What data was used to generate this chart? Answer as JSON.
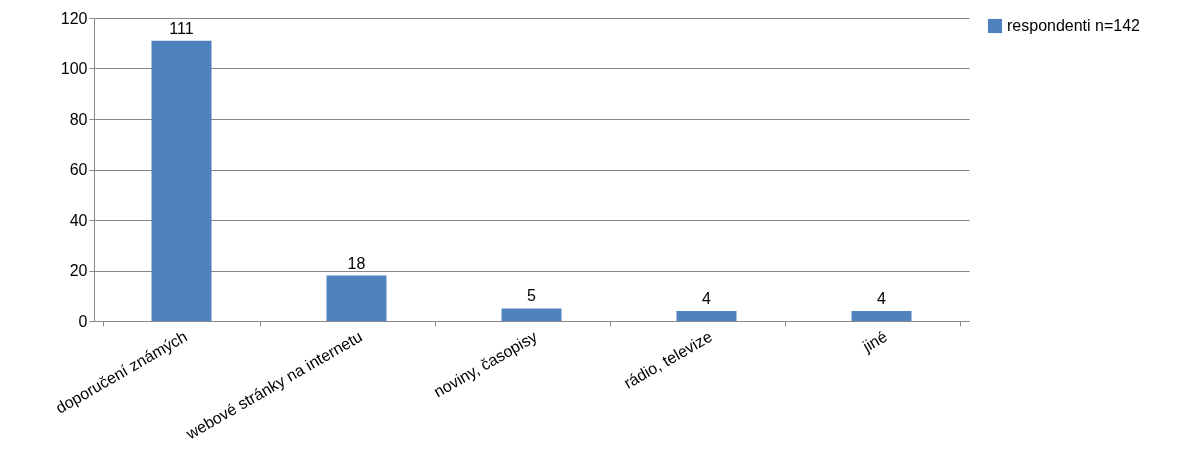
{
  "chart_data": {
    "type": "bar",
    "categories": [
      "doporučení známých",
      "webové stránky  na internetu",
      "noviny, časopisy",
      "rádio, televize",
      "jiné"
    ],
    "series": [
      {
        "name": "respondenti n=142",
        "color": "#4f81bd",
        "values": [
          111,
          18,
          5,
          4,
          4
        ]
      }
    ],
    "ylim": [
      0,
      120
    ],
    "yticks": [
      0,
      20,
      40,
      60,
      80,
      100,
      120
    ],
    "grid": "y",
    "legend": "right",
    "data_labels": true
  }
}
